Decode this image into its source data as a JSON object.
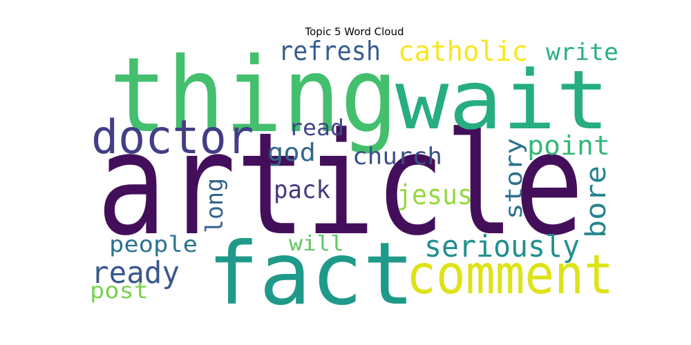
{
  "chart_data": {
    "type": "wordcloud",
    "title": "Topic 5 Word Cloud",
    "words": [
      {
        "text": "article",
        "color": "#440f5a"
      },
      {
        "text": "thing",
        "color": "#43bf6e"
      },
      {
        "text": "wait",
        "color": "#26ad81"
      },
      {
        "text": "fact",
        "color": "#1f9a8a"
      },
      {
        "text": "doctor",
        "color": "#433e85"
      },
      {
        "text": "comment",
        "color": "#dde318"
      },
      {
        "text": "seriously",
        "color": "#218f8d"
      },
      {
        "text": "refresh",
        "color": "#365c8d"
      },
      {
        "text": "catholic",
        "color": "#f8e621"
      },
      {
        "text": "write",
        "color": "#2ab07f"
      },
      {
        "text": "read",
        "color": "#414487"
      },
      {
        "text": "god",
        "color": "#31688e"
      },
      {
        "text": "church",
        "color": "#3b518b"
      },
      {
        "text": "point",
        "color": "#35b779"
      },
      {
        "text": "story",
        "color": "#2d708e"
      },
      {
        "text": "bore",
        "color": "#25858e"
      },
      {
        "text": "pack",
        "color": "#453781"
      },
      {
        "text": "jesus",
        "color": "#95d840"
      },
      {
        "text": "long",
        "color": "#33628d"
      },
      {
        "text": "people",
        "color": "#2c728e"
      },
      {
        "text": "will",
        "color": "#5ec962"
      },
      {
        "text": "ready",
        "color": "#38588c"
      },
      {
        "text": "post",
        "color": "#7ad151"
      }
    ]
  }
}
